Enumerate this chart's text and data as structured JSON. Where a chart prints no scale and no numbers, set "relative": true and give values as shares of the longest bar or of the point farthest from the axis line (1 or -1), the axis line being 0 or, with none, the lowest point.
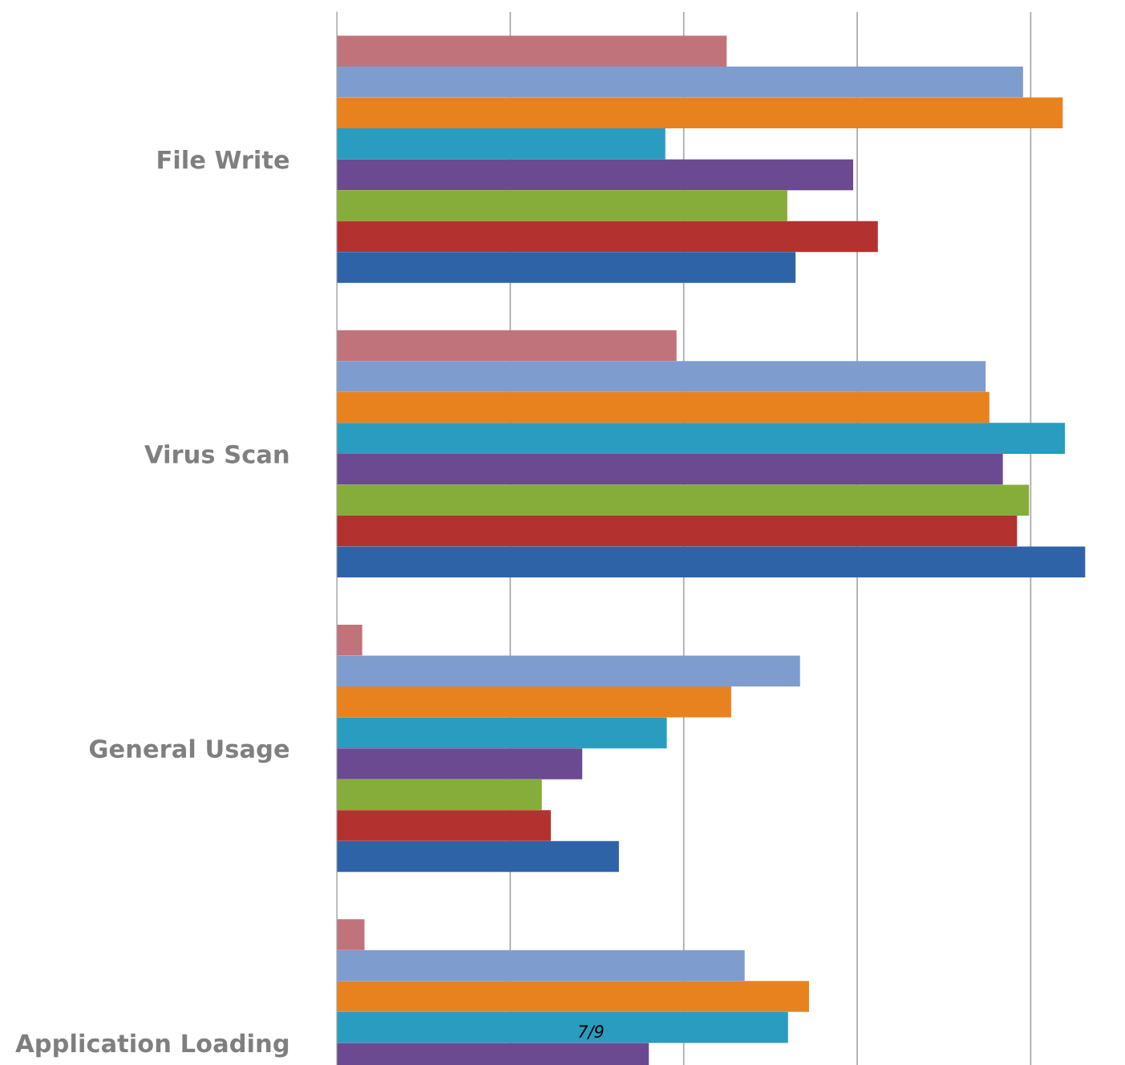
{
  "chart_data": {
    "type": "bar",
    "orientation": "horizontal",
    "relative": true,
    "grid": "x",
    "legend": false,
    "categories": [
      "File Write",
      "Virus Scan",
      "General Usage",
      "Application Loading"
    ],
    "series": [
      {
        "color": "#c0737a",
        "values": [
          0.521,
          0.454,
          0.034,
          0.037
        ]
      },
      {
        "color": "#7f9ccf",
        "values": [
          0.917,
          0.867,
          0.619,
          0.545
        ]
      },
      {
        "color": "#e8821f",
        "values": [
          0.97,
          0.872,
          0.527,
          0.631
        ]
      },
      {
        "color": "#2a9cbf",
        "values": [
          0.439,
          0.973,
          0.441,
          0.603
        ]
      },
      {
        "color": "#6b4a91",
        "values": [
          0.69,
          0.89,
          0.328,
          0.417
        ]
      },
      {
        "color": "#86ad3a",
        "values": [
          0.602,
          0.925,
          0.274,
          null
        ]
      },
      {
        "color": "#b3322f",
        "values": [
          0.723,
          0.909,
          0.286,
          null
        ]
      },
      {
        "color": "#2e63a8",
        "values": [
          0.613,
          1.0,
          0.377,
          null
        ]
      }
    ],
    "annotations": [
      "7/9"
    ]
  }
}
